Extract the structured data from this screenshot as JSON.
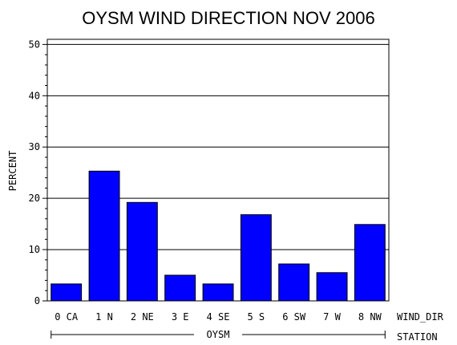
{
  "chart_data": {
    "type": "bar",
    "title": "OYSM WIND DIRECTION NOV 2006",
    "ylabel": "PERCENT",
    "category_axis_label": "WIND_DIR",
    "group_axis_label": "STATION",
    "group": "OYSM",
    "categories": [
      "0 CA",
      "1 N",
      "2 NE",
      "3 E",
      "4 SE",
      "5 S",
      "6 SW",
      "7 W",
      "8 NW"
    ],
    "values": [
      3.3,
      25.3,
      19.2,
      5.0,
      3.3,
      16.8,
      7.2,
      5.5,
      14.9
    ],
    "ylim": [
      0,
      51
    ],
    "yticks": [
      0,
      10,
      20,
      30,
      40,
      50
    ],
    "gridlines": true,
    "bar_color": "#0000ff"
  }
}
